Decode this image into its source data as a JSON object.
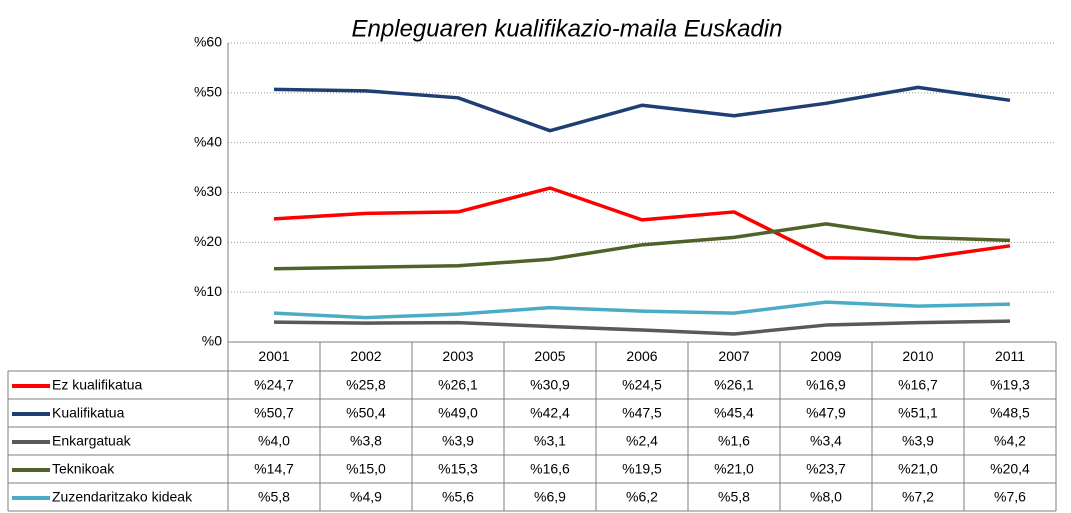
{
  "chart_data": {
    "type": "line",
    "title": "Enpleguaren kualifikazio-maila Euskadin",
    "categories": [
      "2001",
      "2002",
      "2003",
      "2005",
      "2006",
      "2007",
      "2009",
      "2010",
      "2011"
    ],
    "series": [
      {
        "name": "Ez kualifikatua",
        "color": "#ff0000",
        "values": [
          24.7,
          25.8,
          26.1,
          30.9,
          24.5,
          26.1,
          16.9,
          16.7,
          19.3
        ],
        "value_labels": [
          "%24,7",
          "%25,8",
          "%26,1",
          "%30,9",
          "%24,5",
          "%26,1",
          "%16,9",
          "%16,7",
          "%19,3"
        ]
      },
      {
        "name": "Kualifikatua",
        "color": "#1f3f73",
        "values": [
          50.7,
          50.4,
          49.0,
          42.4,
          47.5,
          45.4,
          47.9,
          51.1,
          48.5
        ],
        "value_labels": [
          "%50,7",
          "%50,4",
          "%49,0",
          "%42,4",
          "%47,5",
          "%45,4",
          "%47,9",
          "%51,1",
          "%48,5"
        ]
      },
      {
        "name": "Enkargatuak",
        "color": "#595959",
        "values": [
          4.0,
          3.8,
          3.9,
          3.1,
          2.4,
          1.6,
          3.4,
          3.9,
          4.2
        ],
        "value_labels": [
          "%4,0",
          "%3,8",
          "%3,9",
          "%3,1",
          "%2,4",
          "%1,6",
          "%3,4",
          "%3,9",
          "%4,2"
        ]
      },
      {
        "name": "Teknikoak",
        "color": "#4f6228",
        "values": [
          14.7,
          15.0,
          15.3,
          16.6,
          19.5,
          21.0,
          23.7,
          21.0,
          20.4
        ],
        "value_labels": [
          "%14,7",
          "%15,0",
          "%15,3",
          "%16,6",
          "%19,5",
          "%21,0",
          "%23,7",
          "%21,0",
          "%20,4"
        ]
      },
      {
        "name": "Zuzendaritzako kideak",
        "color": "#4bacc6",
        "values": [
          5.8,
          4.9,
          5.6,
          6.9,
          6.2,
          5.8,
          8.0,
          7.2,
          7.6
        ],
        "value_labels": [
          "%5,8",
          "%4,9",
          "%5,6",
          "%6,9",
          "%6,2",
          "%5,8",
          "%8,0",
          "%7,2",
          "%7,6"
        ]
      }
    ],
    "ylim": [
      0,
      60
    ],
    "yticks": [
      {
        "value": 0,
        "label": "%0"
      },
      {
        "value": 10,
        "label": "%10"
      },
      {
        "value": 20,
        "label": "%20"
      },
      {
        "value": 30,
        "label": "%30"
      },
      {
        "value": 40,
        "label": "%40"
      },
      {
        "value": 50,
        "label": "%50"
      },
      {
        "value": 60,
        "label": "%60"
      }
    ],
    "grid": true
  }
}
